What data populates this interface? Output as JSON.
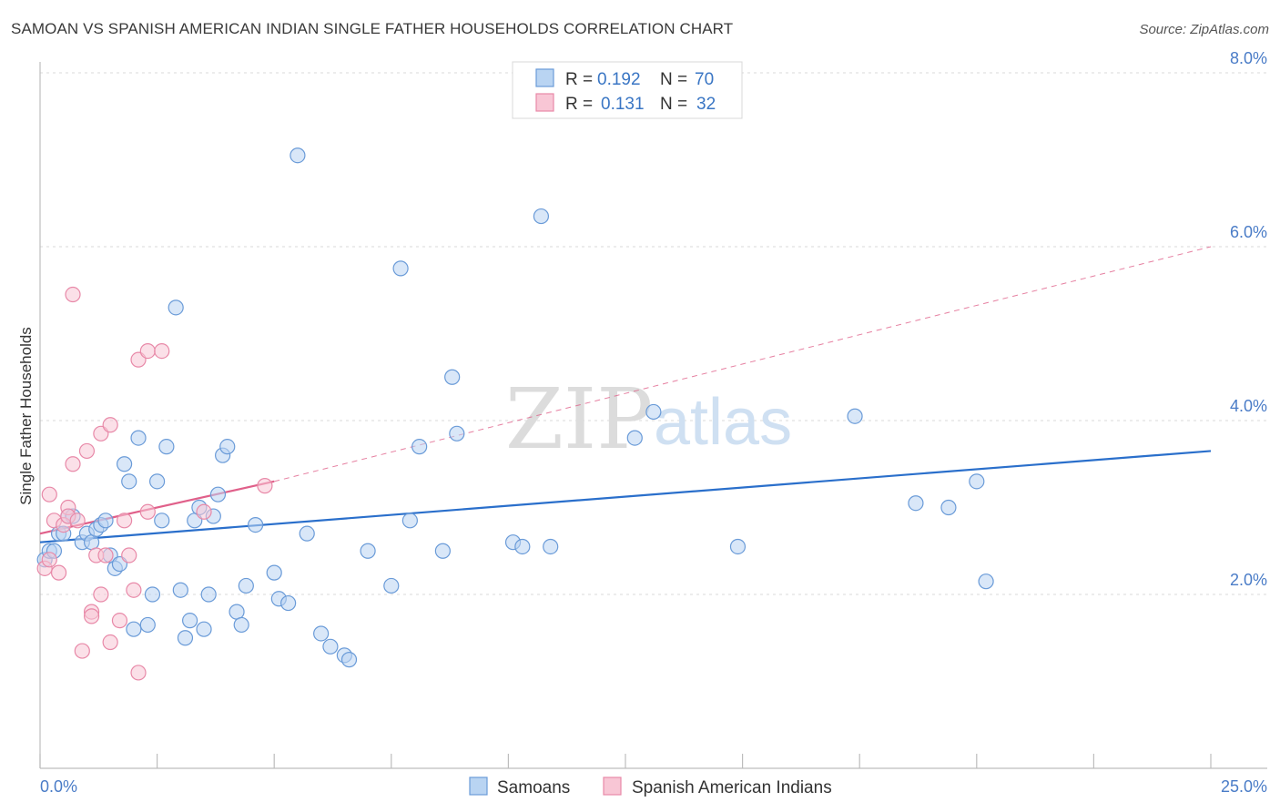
{
  "title": "SAMOAN VS SPANISH AMERICAN INDIAN SINGLE FATHER HOUSEHOLDS CORRELATION CHART",
  "source": "Source: ZipAtlas.com",
  "watermark": {
    "part1": "ZIP",
    "part2": "atlas"
  },
  "colors": {
    "samoan_fill": "#b9d4f2",
    "samoan_stroke": "#6a9bd8",
    "samoan_line": "#2a6fcb",
    "spanish_fill": "#f8c6d5",
    "spanish_stroke": "#e889a8",
    "spanish_line": "#e0608a",
    "grid": "#d9d9d9",
    "tick_text": "#4a7cc7"
  },
  "legend": {
    "rows": [
      {
        "r_label": "R =",
        "r_value": "0.192",
        "n_label": "N =",
        "n_value": "70"
      },
      {
        "r_label": "R =",
        "r_value": "0.131",
        "n_label": "N =",
        "n_value": "32"
      }
    ]
  },
  "chart_data": {
    "type": "scatter",
    "title": "SAMOAN VS SPANISH AMERICAN INDIAN SINGLE FATHER HOUSEHOLDS CORRELATION CHART",
    "xlabel": "",
    "ylabel": "Single Father Households",
    "xlim": [
      0,
      25
    ],
    "ylim": [
      0,
      8.3
    ],
    "x_tick_labels": {
      "min": "0.0%",
      "max": "25.0%"
    },
    "y_ticks": [
      {
        "value": 2,
        "label": "2.0%"
      },
      {
        "value": 4,
        "label": "4.0%"
      },
      {
        "value": 6,
        "label": "6.0%"
      },
      {
        "value": 8,
        "label": "8.0%"
      }
    ],
    "series": [
      {
        "name": "Samoans",
        "trend": {
          "x0": 0,
          "y0": 2.6,
          "x1": 25,
          "y1": 3.65,
          "dashed_from": null
        },
        "points": [
          [
            0.1,
            2.4
          ],
          [
            0.2,
            2.5
          ],
          [
            0.3,
            2.5
          ],
          [
            0.4,
            2.7
          ],
          [
            0.5,
            2.7
          ],
          [
            0.6,
            2.9
          ],
          [
            0.7,
            2.9
          ],
          [
            0.9,
            2.6
          ],
          [
            1.0,
            2.7
          ],
          [
            1.1,
            2.6
          ],
          [
            1.2,
            2.75
          ],
          [
            1.3,
            2.8
          ],
          [
            1.4,
            2.85
          ],
          [
            1.5,
            2.45
          ],
          [
            1.6,
            2.3
          ],
          [
            1.7,
            2.35
          ],
          [
            1.8,
            3.5
          ],
          [
            1.9,
            3.3
          ],
          [
            2.0,
            1.6
          ],
          [
            2.1,
            3.8
          ],
          [
            2.3,
            1.65
          ],
          [
            2.4,
            2.0
          ],
          [
            2.5,
            3.3
          ],
          [
            2.6,
            2.85
          ],
          [
            2.7,
            3.7
          ],
          [
            2.9,
            5.3
          ],
          [
            3.0,
            2.05
          ],
          [
            3.1,
            1.5
          ],
          [
            3.2,
            1.7
          ],
          [
            3.3,
            2.85
          ],
          [
            3.4,
            3.0
          ],
          [
            3.5,
            1.6
          ],
          [
            3.6,
            2.0
          ],
          [
            3.7,
            2.9
          ],
          [
            3.8,
            3.15
          ],
          [
            3.9,
            3.6
          ],
          [
            4.0,
            3.7
          ],
          [
            4.2,
            1.8
          ],
          [
            4.3,
            1.65
          ],
          [
            4.4,
            2.1
          ],
          [
            4.6,
            2.8
          ],
          [
            5.0,
            2.25
          ],
          [
            5.1,
            1.95
          ],
          [
            5.3,
            1.9
          ],
          [
            5.5,
            7.05
          ],
          [
            5.7,
            2.7
          ],
          [
            6.0,
            1.55
          ],
          [
            6.2,
            1.4
          ],
          [
            6.5,
            1.3
          ],
          [
            6.6,
            1.25
          ],
          [
            7.0,
            2.5
          ],
          [
            7.5,
            2.1
          ],
          [
            7.7,
            5.75
          ],
          [
            7.9,
            2.85
          ],
          [
            8.1,
            3.7
          ],
          [
            8.6,
            2.5
          ],
          [
            8.8,
            4.5
          ],
          [
            8.9,
            3.85
          ],
          [
            10.1,
            2.6
          ],
          [
            10.3,
            2.55
          ],
          [
            10.7,
            6.35
          ],
          [
            10.9,
            2.55
          ],
          [
            12.7,
            3.8
          ],
          [
            13.1,
            4.1
          ],
          [
            14.9,
            2.55
          ],
          [
            17.4,
            4.05
          ],
          [
            18.7,
            3.05
          ],
          [
            19.4,
            3.0
          ],
          [
            20.0,
            3.3
          ],
          [
            20.2,
            2.15
          ]
        ]
      },
      {
        "name": "Spanish American Indians",
        "trend": {
          "x0": 0,
          "y0": 2.7,
          "x1": 5.0,
          "y1": 3.3,
          "dashed_to_x": 25,
          "dashed_to_y": 6.0
        },
        "points": [
          [
            0.1,
            2.3
          ],
          [
            0.2,
            2.4
          ],
          [
            0.2,
            3.15
          ],
          [
            0.3,
            2.85
          ],
          [
            0.4,
            2.25
          ],
          [
            0.5,
            2.8
          ],
          [
            0.6,
            3.0
          ],
          [
            0.6,
            2.9
          ],
          [
            0.7,
            3.5
          ],
          [
            0.7,
            5.45
          ],
          [
            0.8,
            2.85
          ],
          [
            0.9,
            1.35
          ],
          [
            1.0,
            3.65
          ],
          [
            1.1,
            1.8
          ],
          [
            1.1,
            1.75
          ],
          [
            1.2,
            2.45
          ],
          [
            1.3,
            3.85
          ],
          [
            1.3,
            2.0
          ],
          [
            1.4,
            2.45
          ],
          [
            1.5,
            3.95
          ],
          [
            1.5,
            1.45
          ],
          [
            1.7,
            1.7
          ],
          [
            1.8,
            2.85
          ],
          [
            1.9,
            2.45
          ],
          [
            2.0,
            2.05
          ],
          [
            2.1,
            1.1
          ],
          [
            2.1,
            4.7
          ],
          [
            2.3,
            2.95
          ],
          [
            2.3,
            4.8
          ],
          [
            2.6,
            4.8
          ],
          [
            3.5,
            2.95
          ],
          [
            4.8,
            3.25
          ]
        ]
      }
    ],
    "bottom_legend": [
      "Samoans",
      "Spanish American Indians"
    ]
  }
}
